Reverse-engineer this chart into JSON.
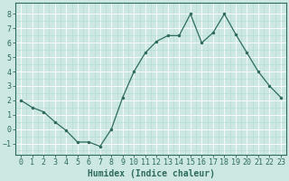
{
  "x": [
    0,
    1,
    2,
    3,
    4,
    5,
    6,
    7,
    8,
    9,
    10,
    11,
    12,
    13,
    14,
    15,
    16,
    17,
    18,
    19,
    20,
    21,
    22,
    23
  ],
  "y": [
    2.0,
    1.5,
    1.2,
    0.5,
    -0.1,
    -0.9,
    -0.9,
    -1.2,
    0.0,
    2.2,
    4.0,
    5.3,
    6.1,
    6.5,
    6.5,
    8.0,
    6.0,
    6.7,
    8.0,
    6.6,
    5.3,
    4.0,
    3.0,
    2.2
  ],
  "line_color": "#2e6b5e",
  "marker": ".",
  "marker_size": 3,
  "bg_color": "#cde8e3",
  "grid_major_color": "#b0d8d2",
  "grid_minor_color": "#b0d8d2",
  "grid_white_color": "#ffffff",
  "xlabel": "Humidex (Indice chaleur)",
  "xlabel_fontsize": 7,
  "tick_fontsize": 6,
  "ylim": [
    -1.8,
    8.8
  ],
  "xlim": [
    -0.5,
    23.5
  ],
  "yticks": [
    -1,
    0,
    1,
    2,
    3,
    4,
    5,
    6,
    7,
    8
  ],
  "xticks": [
    0,
    1,
    2,
    3,
    4,
    5,
    6,
    7,
    8,
    9,
    10,
    11,
    12,
    13,
    14,
    15,
    16,
    17,
    18,
    19,
    20,
    21,
    22,
    23
  ]
}
